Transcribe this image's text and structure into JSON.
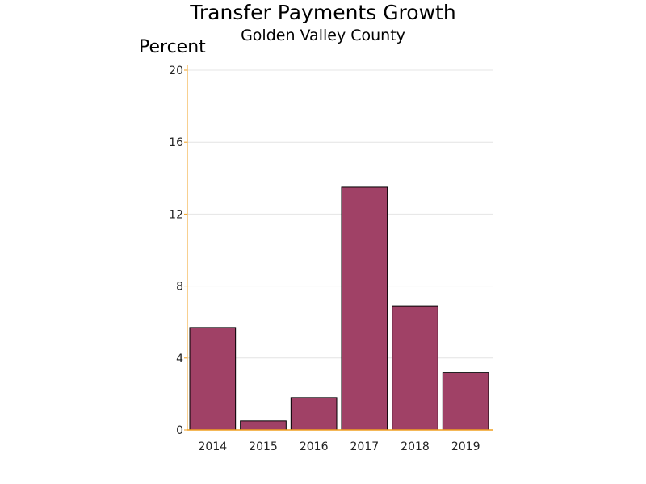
{
  "chart_data": {
    "type": "bar",
    "title": "Transfer Payments Growth",
    "subtitle": "Golden Valley County",
    "ylabel": "Percent",
    "xlabel": "",
    "categories": [
      "2014",
      "2015",
      "2016",
      "2017",
      "2018",
      "2019"
    ],
    "values": [
      5.7,
      0.5,
      1.8,
      13.5,
      6.9,
      3.2
    ],
    "ylim": [
      0,
      20
    ],
    "yticks": [
      "0",
      "4",
      "8",
      "12",
      "16",
      "20"
    ],
    "grid": true,
    "legend": "none",
    "colors": {
      "bar": "#a04166",
      "bar_outline": "#000000",
      "axis": "#f0a020",
      "grid": "#e4e4e4"
    }
  }
}
